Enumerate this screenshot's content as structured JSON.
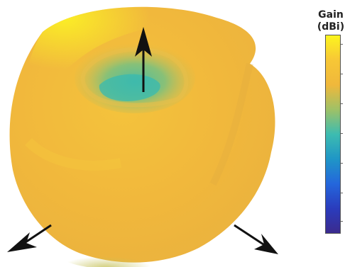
{
  "colorbar": {
    "title_line1": "Gain",
    "title_line2": "(dBi)",
    "colormap": [
      "#fcf51e",
      "#f7c736",
      "#f0b83b",
      "#9fc166",
      "#3dbcb0",
      "#1f96c6",
      "#2467dc",
      "#2a3cbd",
      "#3b2b8e"
    ]
  },
  "pattern": {
    "body_color": "#f1b83c",
    "highlight_color": "#f9d83a",
    "lobe_color": "#5ac09b",
    "axis_color": "#111111"
  }
}
